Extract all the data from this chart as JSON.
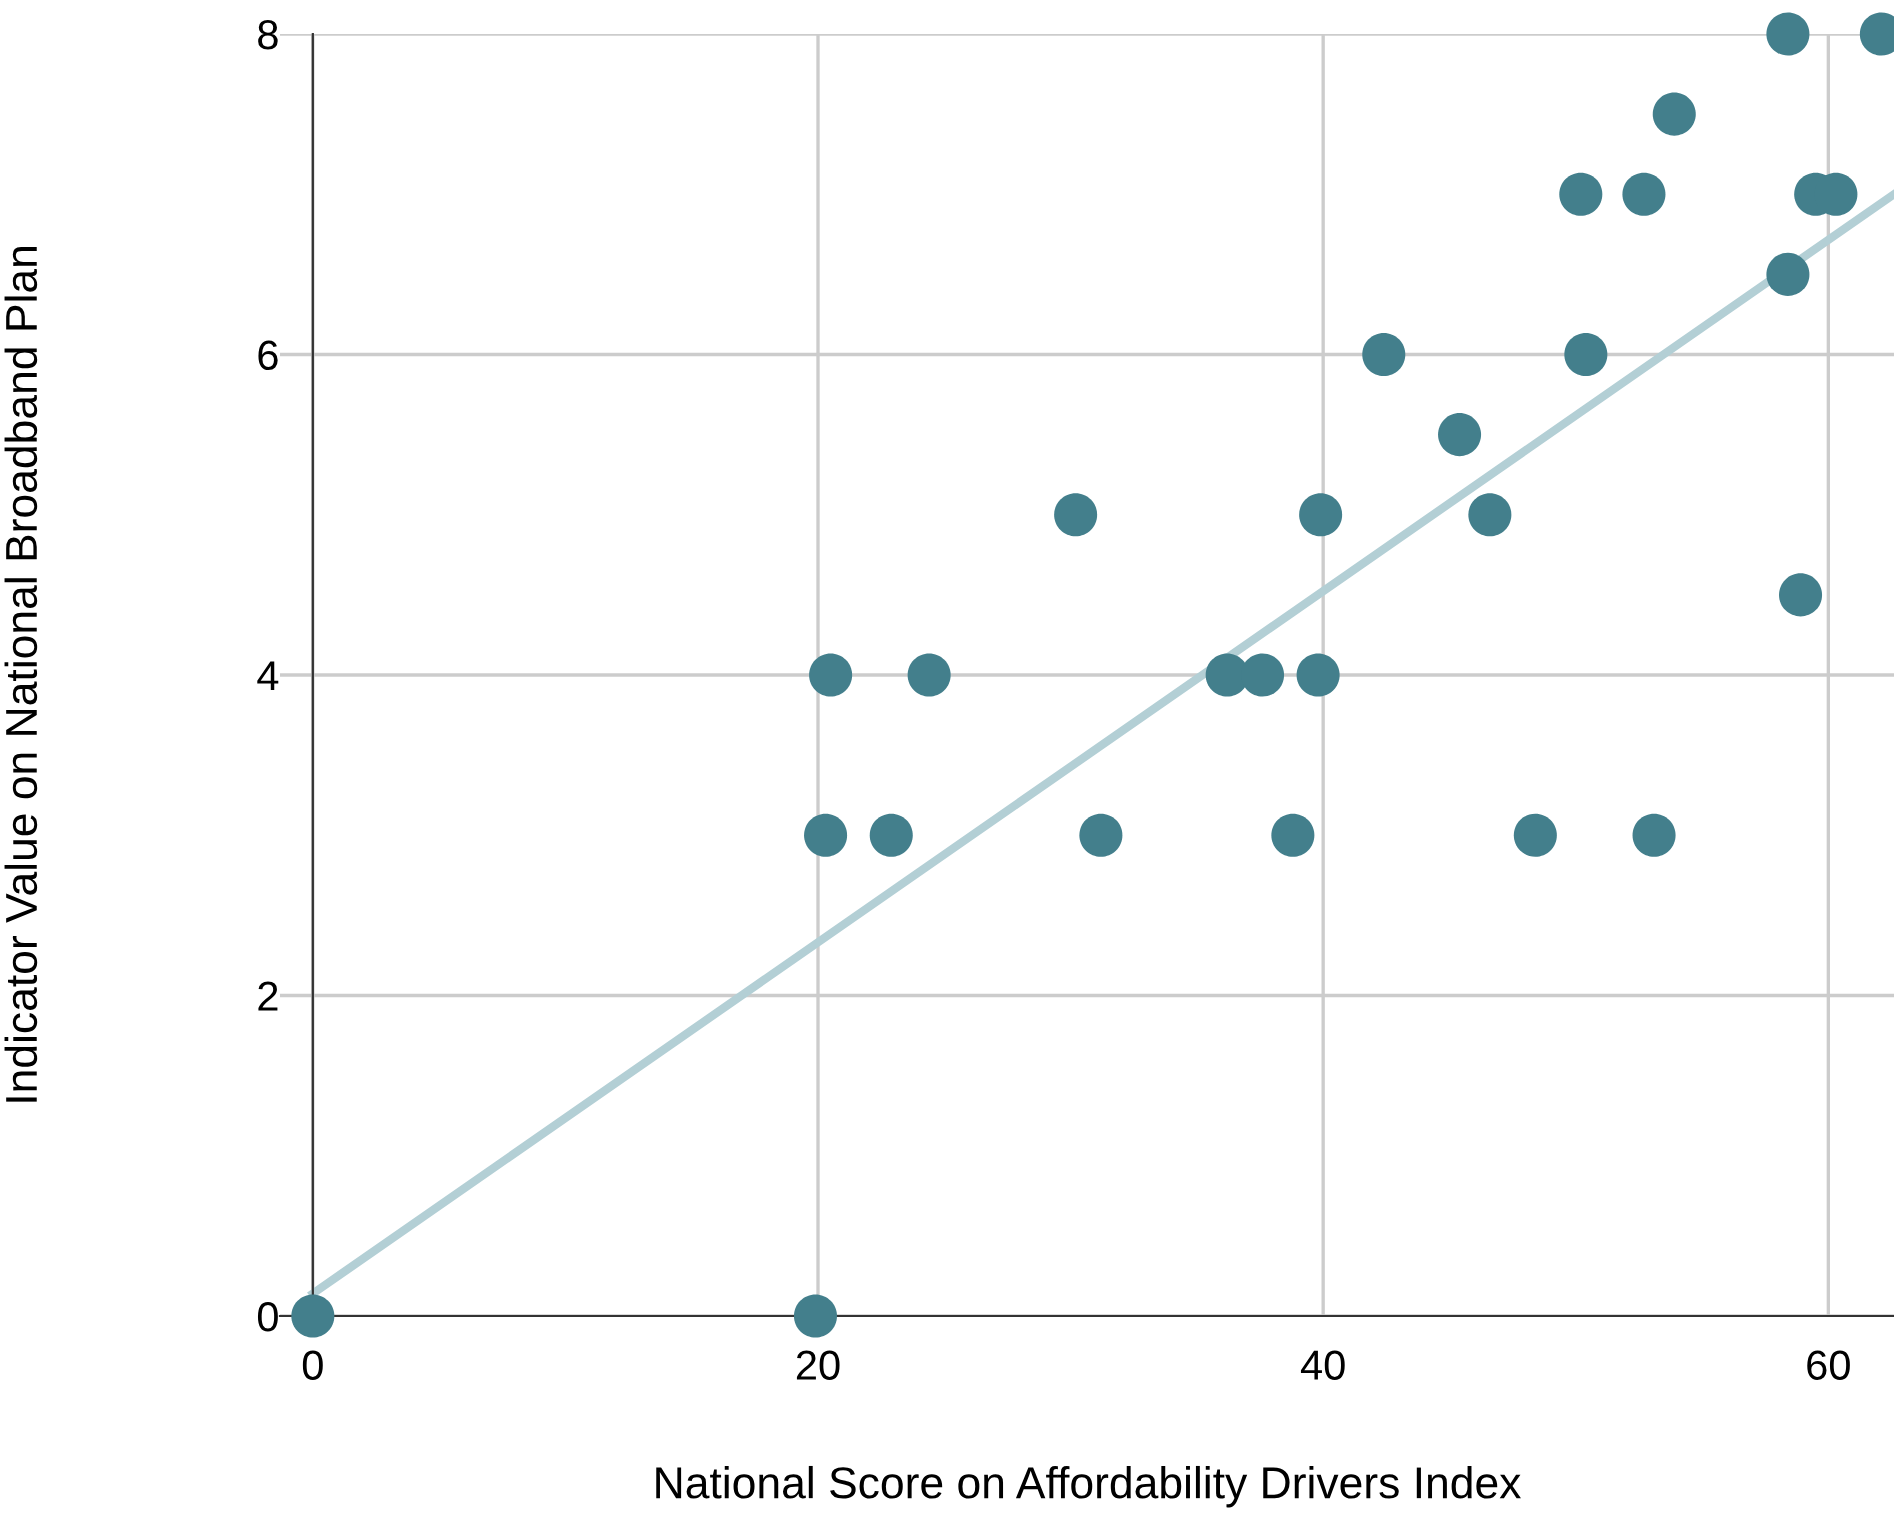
{
  "chart_data": {
    "type": "scatter",
    "xlabel": "National Score on Affordability Drivers Index",
    "ylabel": "Indicator Value on National Broadband Plan",
    "xlim": [
      -1.3,
      62.6
    ],
    "ylim": [
      0,
      8
    ],
    "xticks": [
      0,
      20,
      40,
      60
    ],
    "yticks": [
      0,
      2,
      4,
      6,
      8
    ],
    "grid": true,
    "series": [
      {
        "color": "#437f8c",
        "marker": "circle",
        "x": [
          0,
          19.9,
          20.3,
          20.5,
          22.9,
          24.4,
          30.2,
          31.2,
          36.2,
          37.6,
          38.8,
          39.8,
          39.9,
          42.4,
          45.4,
          46.6,
          48.4,
          50.2,
          50.4,
          52.7,
          53.1,
          53.9,
          58.4,
          58.4,
          58.9,
          59.5,
          60.3,
          62.1
        ],
        "values": [
          0,
          0,
          3,
          4,
          3,
          4,
          5,
          3,
          4,
          4,
          3,
          4,
          5,
          6,
          5.5,
          5,
          3,
          7,
          6,
          7,
          3,
          7.5,
          8,
          6.5,
          4.5,
          7,
          7,
          8
        ]
      },
      {
        "type": "line",
        "color": "#b3cfd5",
        "x": [
          0,
          62.6
        ],
        "values": [
          0.14,
          7.0
        ]
      }
    ]
  }
}
